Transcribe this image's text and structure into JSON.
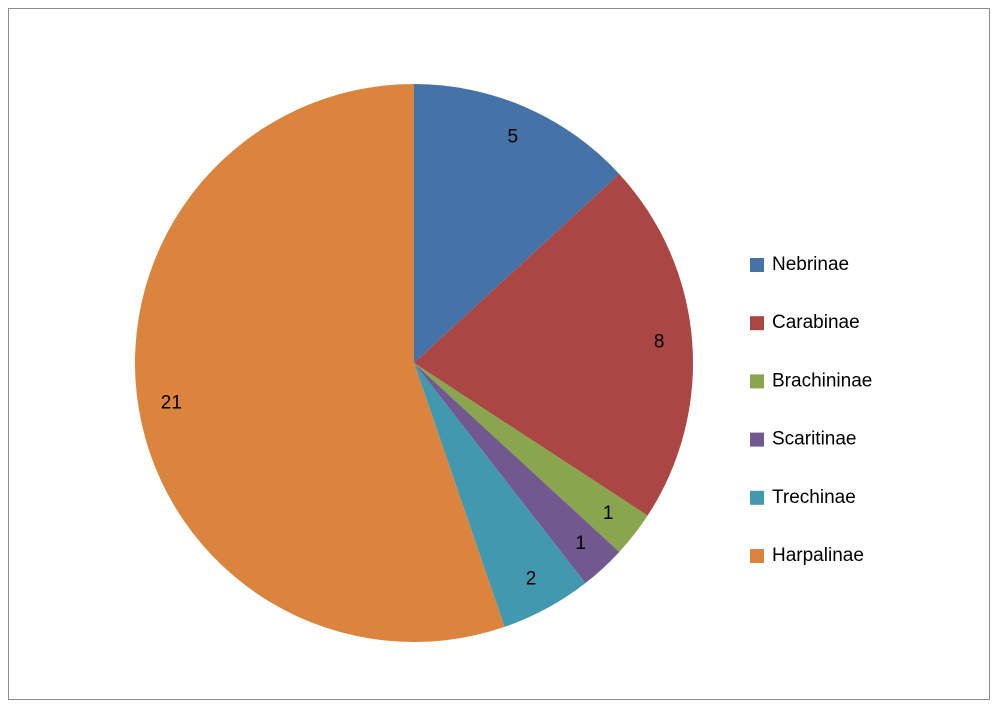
{
  "chart_data": {
    "type": "pie",
    "categories": [
      "Nebrinae",
      "Carabinae",
      "Brachininae",
      "Scaritinae",
      "Trechinae",
      "Harpalinae"
    ],
    "values": [
      5,
      8,
      1,
      1,
      2,
      21
    ],
    "colors": [
      "#4572a7",
      "#aa4643",
      "#89a54e",
      "#71588f",
      "#4198af",
      "#db843d"
    ],
    "legend": "right"
  }
}
